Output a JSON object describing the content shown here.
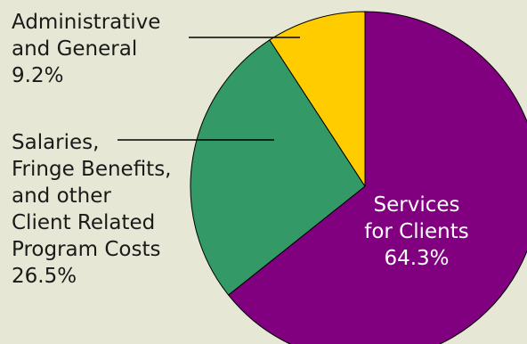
{
  "chart_data": {
    "type": "pie",
    "slices": [
      {
        "key": "services",
        "label_lines": [
          "Services",
          "for Clients",
          "64.3%"
        ],
        "value": 64.3,
        "color": "#800080"
      },
      {
        "key": "salaries",
        "label_lines": [
          "Salaries,",
          "Fringe Benefits,",
          "and other",
          "Client Related",
          "Program Costs",
          "26.5%"
        ],
        "value": 26.5,
        "color": "#339966"
      },
      {
        "key": "admin",
        "label_lines": [
          "Administrative",
          "and General",
          "9.2%"
        ],
        "value": 9.2,
        "color": "#ffcc00"
      }
    ],
    "start_angle_deg": 0,
    "direction": "clockwise",
    "legend": "none",
    "background_color": "#e6e8d5",
    "leader_line_color": "#000000"
  }
}
